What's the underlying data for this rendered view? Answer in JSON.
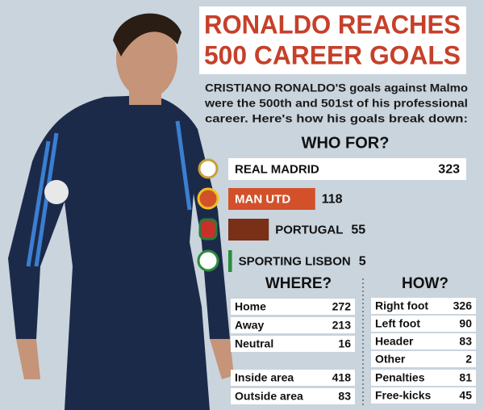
{
  "header": {
    "title": [
      "RONALDO REACHES",
      "500 CAREER GOALS"
    ],
    "intro": [
      "CRISTIANO RONALDO'S goals against Malmo",
      "were the 500th and 501st of his professional",
      "career. Here's how his goals break down:"
    ]
  },
  "who_for": {
    "title": "WHO FOR?",
    "clubs": [
      {
        "name": "REAL MADRID",
        "value": 323,
        "color": "#ffffff"
      },
      {
        "name": "MAN UTD",
        "value": 118,
        "color": "#d2512b"
      },
      {
        "name": "PORTUGAL",
        "value": 55,
        "color": "#7a2f17"
      },
      {
        "name": "SPORTING LISBON",
        "value": 5,
        "color": "#2b8c3c"
      }
    ]
  },
  "where": {
    "title": "WHERE?",
    "groups": [
      [
        {
          "label": "Home",
          "value": 272
        },
        {
          "label": "Away",
          "value": 213
        },
        {
          "label": "Neutral",
          "value": 16
        }
      ],
      [
        {
          "label": "Inside area",
          "value": 418
        },
        {
          "label": "Outside area",
          "value": 83
        }
      ]
    ]
  },
  "how": {
    "title": "HOW?",
    "groups": [
      [
        {
          "label": "Right foot",
          "value": 326
        },
        {
          "label": "Left foot",
          "value": 90
        },
        {
          "label": "Header",
          "value": 83
        },
        {
          "label": "Other",
          "value": 2
        }
      ],
      [
        {
          "label": "Penalties",
          "value": 81
        },
        {
          "label": "Free-kicks",
          "value": 45
        }
      ]
    ]
  }
}
